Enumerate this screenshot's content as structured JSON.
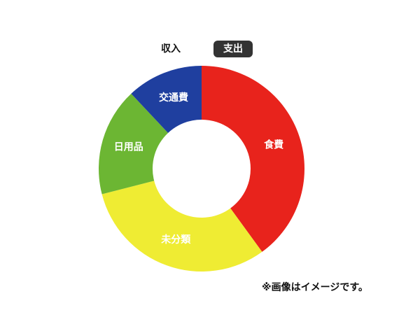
{
  "tabs": {
    "income_label": "収入",
    "expense_label": "支出",
    "active": "expense",
    "active_color": "#333333"
  },
  "chart_data": {
    "type": "pie",
    "donut": true,
    "title": "",
    "start_angle_deg": 0,
    "direction": "clockwise",
    "categories": [
      "食費",
      "未分類",
      "日用品",
      "交通費"
    ],
    "values": [
      40,
      31,
      17,
      12
    ],
    "colors": [
      "#e8231c",
      "#efec33",
      "#6cb633",
      "#1f3f9f"
    ],
    "label_color": "#ffffff"
  },
  "note": "※画像はイメージです。"
}
